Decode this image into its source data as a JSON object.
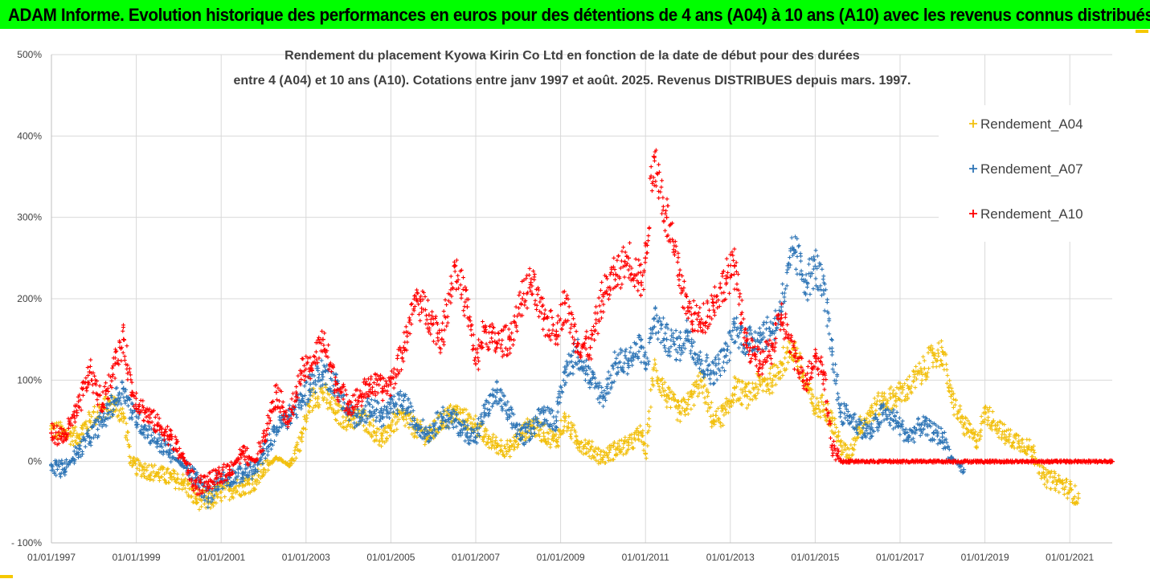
{
  "header": {
    "title": "ADAM Informe. Evolution historique des performances en euros pour des détentions de 4 ans (A04) à 10 ans (A10) avec les revenus connus distribués"
  },
  "colors": {
    "banner": "#00ff00",
    "frame_accent": "#f5c800",
    "A04": "#f2c00f",
    "A07": "#2e75b6",
    "A10": "#ff0000",
    "grid": "#d9d9d9"
  },
  "chart_data": {
    "type": "scatter",
    "title_lines": [
      "Rendement du placement Kyowa Kirin Co Ltd en fonction de la date de début pour des durées",
      "entre 4 (A04) et 10 ans (A10). Cotations entre janv 1997 et août. 2025. Revenus DISTRIBUES depuis mars. 1997."
    ],
    "xlabel": "",
    "ylabel": "",
    "x_ticks": [
      "01/01/1997",
      "01/01/1999",
      "01/01/2001",
      "01/01/2003",
      "01/01/2005",
      "01/01/2007",
      "01/01/2009",
      "01/01/2011",
      "01/01/2013",
      "01/01/2015",
      "01/01/2017",
      "01/01/2019",
      "01/01/2021"
    ],
    "x_range": [
      "1997-01-01",
      "2022-01-01"
    ],
    "y_ticks": [
      "500%",
      "400%",
      "300%",
      "200%",
      "100%",
      "0%",
      "- 100%"
    ],
    "y_range": [
      -100,
      500
    ],
    "grid": true,
    "legend_position": "right",
    "marker": "plus",
    "series": [
      {
        "name": "Rendement_A04",
        "color": "#f2c00f",
        "x": [
          1997.0,
          1997.3,
          1997.6,
          1997.9,
          1998.2,
          1998.5,
          1998.7,
          1998.9,
          1999.2,
          1999.5,
          1999.8,
          2000.1,
          2000.4,
          2000.7,
          2000.9,
          2001.2,
          2001.5,
          2001.8,
          2002.0,
          2002.3,
          2002.6,
          2002.9,
          2003.1,
          2003.4,
          2003.7,
          2004.0,
          2004.3,
          2004.5,
          2004.8,
          2005.0,
          2005.3,
          2005.6,
          2005.9,
          2006.2,
          2006.5,
          2006.8,
          2007.0,
          2007.2,
          2007.5,
          2007.8,
          2008.1,
          2008.3,
          2008.6,
          2008.9,
          2009.1,
          2009.4,
          2009.7,
          2010.0,
          2010.3,
          2010.6,
          2010.9,
          2011.0,
          2011.2,
          2011.5,
          2011.8,
          2012.0,
          2012.3,
          2012.6,
          2012.9,
          2013.1,
          2013.4,
          2013.7,
          2014.0,
          2014.2,
          2014.5,
          2014.8,
          2015.0,
          2015.2,
          2015.4,
          2015.6,
          2015.8,
          2016.0,
          2016.3,
          2016.6,
          2016.9,
          2017.2,
          2017.5,
          2017.8,
          2018.0,
          2018.2,
          2018.5,
          2018.8,
          2019.0,
          2019.2,
          2019.5,
          2019.8,
          2020.1,
          2020.4,
          2020.7,
          2021.0,
          2021.2
        ],
        "y": [
          40,
          35,
          30,
          50,
          65,
          70,
          55,
          -5,
          -10,
          -15,
          -20,
          -25,
          -45,
          -50,
          -40,
          -35,
          -30,
          -25,
          -10,
          5,
          -5,
          30,
          75,
          85,
          60,
          50,
          55,
          45,
          25,
          45,
          55,
          40,
          30,
          50,
          60,
          50,
          45,
          30,
          20,
          15,
          35,
          45,
          35,
          25,
          50,
          25,
          15,
          5,
          15,
          20,
          35,
          10,
          115,
          80,
          60,
          70,
          100,
          50,
          60,
          90,
          80,
          95,
          100,
          120,
          140,
          90,
          65,
          70,
          50,
          20,
          5,
          40,
          60,
          75,
          80,
          90,
          110,
          130,
          135,
          80,
          45,
          25,
          60,
          50,
          30,
          25,
          15,
          -20,
          -25,
          -35,
          -45
        ]
      },
      {
        "name": "Rendement_A07",
        "color": "#2e75b6",
        "x": [
          1997.0,
          1997.3,
          1997.6,
          1997.9,
          1998.2,
          1998.5,
          1998.7,
          1998.9,
          1999.2,
          1999.5,
          1999.8,
          2000.1,
          2000.4,
          2000.7,
          2000.9,
          2001.2,
          2001.5,
          2001.8,
          2002.0,
          2002.3,
          2002.6,
          2002.9,
          2003.1,
          2003.4,
          2003.7,
          2004.0,
          2004.3,
          2004.5,
          2004.8,
          2005.0,
          2005.3,
          2005.6,
          2005.9,
          2006.2,
          2006.5,
          2006.8,
          2007.0,
          2007.2,
          2007.5,
          2007.8,
          2008.1,
          2008.3,
          2008.6,
          2008.9,
          2009.1,
          2009.4,
          2009.7,
          2010.0,
          2010.3,
          2010.6,
          2010.9,
          2011.0,
          2011.2,
          2011.5,
          2011.8,
          2012.0,
          2012.3,
          2012.6,
          2012.9,
          2013.1,
          2013.4,
          2013.7,
          2014.0,
          2014.2,
          2014.5,
          2014.8,
          2015.0,
          2015.2,
          2015.4,
          2015.6,
          2015.8,
          2016.0,
          2016.3,
          2016.6,
          2016.9,
          2017.2,
          2017.5,
          2017.8,
          2018.0,
          2018.2,
          2018.5
        ],
        "y": [
          -5,
          -10,
          10,
          30,
          50,
          75,
          90,
          60,
          40,
          25,
          10,
          -5,
          -20,
          -45,
          -25,
          -20,
          -15,
          -10,
          10,
          40,
          55,
          75,
          95,
          110,
          95,
          60,
          50,
          70,
          55,
          65,
          75,
          45,
          35,
          55,
          50,
          35,
          30,
          60,
          85,
          55,
          30,
          40,
          60,
          50,
          110,
          135,
          100,
          80,
          120,
          125,
          140,
          120,
          175,
          150,
          140,
          160,
          120,
          110,
          130,
          165,
          145,
          155,
          160,
          190,
          260,
          220,
          240,
          210,
          135,
          60,
          55,
          45,
          35,
          60,
          50,
          30,
          45,
          35,
          30,
          5,
          -10
        ]
      },
      {
        "name": "Rendement_A10",
        "color": "#ff0000",
        "x": [
          1997.0,
          1997.3,
          1997.6,
          1997.9,
          1998.2,
          1998.5,
          1998.7,
          1998.9,
          1999.2,
          1999.5,
          1999.8,
          2000.1,
          2000.4,
          2000.7,
          2000.9,
          2001.2,
          2001.5,
          2001.8,
          2002.0,
          2002.3,
          2002.6,
          2002.9,
          2003.1,
          2003.4,
          2003.7,
          2004.0,
          2004.3,
          2004.5,
          2004.8,
          2005.0,
          2005.3,
          2005.6,
          2005.9,
          2006.2,
          2006.5,
          2006.8,
          2007.0,
          2007.2,
          2007.5,
          2007.8,
          2008.1,
          2008.3,
          2008.6,
          2008.9,
          2009.1,
          2009.4,
          2009.7,
          2010.0,
          2010.3,
          2010.6,
          2010.9,
          2011.0,
          2011.2,
          2011.5,
          2011.8,
          2012.0,
          2012.3,
          2012.6,
          2012.9,
          2013.1,
          2013.4,
          2013.7,
          2014.0,
          2014.2,
          2014.5,
          2014.8,
          2015.0,
          2015.2,
          2015.4,
          2015.6,
          2015.8,
          2016.0,
          2016.5,
          2017.0,
          2017.5,
          2018.0,
          2018.5,
          2019.0,
          2019.5,
          2020.0,
          2020.5,
          2021.0,
          2021.5,
          2022.0
        ],
        "y": [
          35,
          30,
          60,
          110,
          70,
          120,
          150,
          85,
          60,
          45,
          30,
          5,
          -30,
          -25,
          -20,
          -10,
          10,
          0,
          30,
          85,
          50,
          110,
          115,
          150,
          95,
          70,
          80,
          95,
          90,
          95,
          140,
          200,
          180,
          150,
          240,
          190,
          120,
          160,
          145,
          150,
          200,
          220,
          175,
          160,
          195,
          145,
          140,
          205,
          230,
          250,
          220,
          250,
          375,
          300,
          230,
          185,
          170,
          195,
          225,
          240,
          140,
          120,
          140,
          180,
          130,
          100,
          130,
          110,
          20,
          0,
          0,
          0,
          0,
          0,
          0,
          0,
          0,
          0,
          0,
          0,
          0,
          0,
          0,
          0
        ]
      }
    ]
  }
}
